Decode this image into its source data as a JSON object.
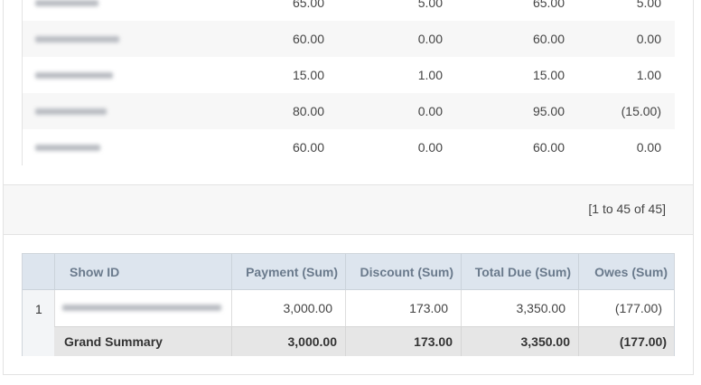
{
  "top_table": {
    "rows": [
      [
        "65.00",
        "5.00",
        "65.00",
        "5.00"
      ],
      [
        "60.00",
        "0.00",
        "60.00",
        "0.00"
      ],
      [
        "15.00",
        "1.00",
        "15.00",
        "1.00"
      ],
      [
        "80.00",
        "0.00",
        "95.00",
        "(15.00)"
      ],
      [
        "60.00",
        "0.00",
        "60.00",
        "0.00"
      ]
    ]
  },
  "pagination": "[1 to 45 of 45]",
  "summary_table": {
    "headers": [
      "Show ID",
      "Payment (Sum)",
      "Discount (Sum)",
      "Total Due (Sum)",
      "Owes (Sum)"
    ],
    "rows": [
      {
        "index": "1",
        "values": [
          "3,000.00",
          "173.00",
          "3,350.00",
          "(177.00)"
        ]
      }
    ],
    "grand": {
      "label": "Grand Summary",
      "values": [
        "3,000.00",
        "173.00",
        "3,350.00",
        "(177.00)"
      ]
    }
  }
}
